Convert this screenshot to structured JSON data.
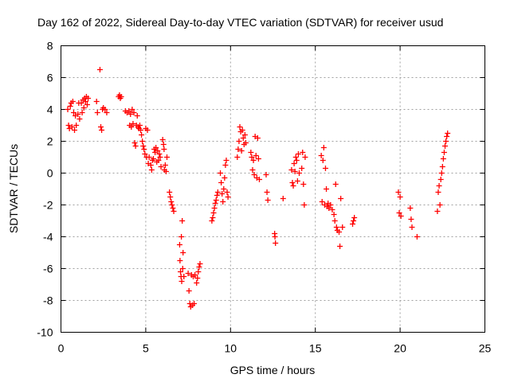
{
  "chart_data": {
    "type": "scatter",
    "title": "Day 162 of 2022, Sidereal Day-to-day VTEC variation (SDTVAR) for receiver usud",
    "xlabel": "GPS time / hours",
    "ylabel": "SDTVAR / TECUs",
    "xlim": [
      0,
      25
    ],
    "ylim": [
      -10,
      8
    ],
    "xticks": [
      0,
      5,
      10,
      15,
      20,
      25
    ],
    "yticks": [
      -10,
      -8,
      -6,
      -4,
      -2,
      0,
      2,
      4,
      6,
      8
    ],
    "grid": true,
    "marker": "+",
    "marker_color": "#ff0000",
    "series": [
      {
        "name": "SDTVAR",
        "points": [
          [
            0.4,
            4.0
          ],
          [
            0.45,
            3.0
          ],
          [
            0.5,
            2.8
          ],
          [
            0.55,
            4.2
          ],
          [
            0.6,
            4.4
          ],
          [
            0.65,
            2.9
          ],
          [
            0.7,
            4.5
          ],
          [
            0.75,
            3.8
          ],
          [
            0.8,
            2.7
          ],
          [
            0.85,
            3.6
          ],
          [
            0.9,
            3.0
          ],
          [
            1.0,
            3.7
          ],
          [
            1.05,
            4.4
          ],
          [
            1.1,
            3.4
          ],
          [
            1.2,
            4.4
          ],
          [
            1.25,
            3.8
          ],
          [
            1.3,
            4.6
          ],
          [
            1.35,
            4.1
          ],
          [
            1.4,
            4.7
          ],
          [
            1.45,
            4.5
          ],
          [
            1.5,
            4.8
          ],
          [
            1.55,
            4.3
          ],
          [
            1.6,
            4.7
          ],
          [
            2.1,
            4.5
          ],
          [
            2.15,
            3.8
          ],
          [
            2.3,
            6.5
          ],
          [
            2.35,
            2.9
          ],
          [
            2.4,
            2.7
          ],
          [
            2.45,
            4.0
          ],
          [
            2.5,
            4.1
          ],
          [
            2.6,
            4.0
          ],
          [
            2.7,
            3.8
          ],
          [
            3.4,
            4.8
          ],
          [
            3.45,
            4.9
          ],
          [
            3.5,
            4.7
          ],
          [
            3.55,
            4.8
          ],
          [
            3.8,
            3.9
          ],
          [
            3.9,
            3.8
          ],
          [
            4.0,
            3.9
          ],
          [
            4.05,
            3.0
          ],
          [
            4.1,
            3.7
          ],
          [
            4.15,
            2.9
          ],
          [
            4.2,
            4.0
          ],
          [
            4.25,
            3.1
          ],
          [
            4.3,
            3.8
          ],
          [
            4.35,
            1.9
          ],
          [
            4.4,
            1.7
          ],
          [
            4.45,
            3.0
          ],
          [
            4.5,
            3.6
          ],
          [
            4.55,
            2.9
          ],
          [
            4.6,
            2.8
          ],
          [
            4.65,
            3.0
          ],
          [
            4.7,
            2.7
          ],
          [
            4.75,
            2.4
          ],
          [
            4.8,
            2.0
          ],
          [
            4.85,
            1.7
          ],
          [
            4.9,
            1.5
          ],
          [
            4.95,
            1.2
          ],
          [
            5.0,
            2.8
          ],
          [
            5.05,
            1.0
          ],
          [
            5.1,
            2.7
          ],
          [
            5.15,
            0.6
          ],
          [
            5.2,
            1.0
          ],
          [
            5.3,
            0.5
          ],
          [
            5.35,
            0.2
          ],
          [
            5.4,
            0.8
          ],
          [
            5.45,
            0.9
          ],
          [
            5.5,
            1.5
          ],
          [
            5.55,
            1.3
          ],
          [
            5.6,
            1.6
          ],
          [
            5.65,
            0.7
          ],
          [
            5.7,
            1.4
          ],
          [
            5.75,
            0.8
          ],
          [
            5.8,
            1.2
          ],
          [
            5.85,
            1.0
          ],
          [
            5.9,
            0.4
          ],
          [
            6.0,
            2.1
          ],
          [
            6.05,
            1.8
          ],
          [
            6.08,
            1.5
          ],
          [
            6.1,
            0.2
          ],
          [
            6.15,
            0.5
          ],
          [
            6.2,
            0.1
          ],
          [
            6.25,
            1.0
          ],
          [
            6.4,
            -1.2
          ],
          [
            6.45,
            -1.5
          ],
          [
            6.5,
            -1.8
          ],
          [
            6.55,
            -2.0
          ],
          [
            6.6,
            -2.2
          ],
          [
            6.65,
            -2.4
          ],
          [
            7.0,
            -4.5
          ],
          [
            7.02,
            -5.5
          ],
          [
            7.05,
            -6.2
          ],
          [
            7.08,
            -6.5
          ],
          [
            7.1,
            -4.0
          ],
          [
            7.12,
            -6.8
          ],
          [
            7.15,
            -3.0
          ],
          [
            7.18,
            -6.0
          ],
          [
            7.2,
            -5.0
          ],
          [
            7.25,
            -6.5
          ],
          [
            7.5,
            -6.3
          ],
          [
            7.55,
            -7.4
          ],
          [
            7.6,
            -8.2
          ],
          [
            7.65,
            -8.4
          ],
          [
            7.7,
            -6.4
          ],
          [
            7.75,
            -8.3
          ],
          [
            7.8,
            -6.5
          ],
          [
            7.85,
            -8.2
          ],
          [
            7.9,
            -6.4
          ],
          [
            8.0,
            -6.9
          ],
          [
            8.05,
            -6.6
          ],
          [
            8.1,
            -6.2
          ],
          [
            8.15,
            -5.9
          ],
          [
            8.2,
            -5.7
          ],
          [
            8.9,
            -3.0
          ],
          [
            8.95,
            -2.8
          ],
          [
            9.0,
            -2.5
          ],
          [
            9.05,
            -2.2
          ],
          [
            9.1,
            -1.9
          ],
          [
            9.15,
            -1.7
          ],
          [
            9.2,
            -1.4
          ],
          [
            9.25,
            -1.2
          ],
          [
            9.4,
            0.0
          ],
          [
            9.45,
            -0.6
          ],
          [
            9.5,
            -1.3
          ],
          [
            9.55,
            -1.8
          ],
          [
            9.6,
            -1.0
          ],
          [
            9.65,
            -0.3
          ],
          [
            9.7,
            0.5
          ],
          [
            9.75,
            0.8
          ],
          [
            9.8,
            -1.2
          ],
          [
            9.85,
            -1.5
          ],
          [
            10.4,
            1.0
          ],
          [
            10.45,
            1.5
          ],
          [
            10.5,
            2.0
          ],
          [
            10.55,
            2.9
          ],
          [
            10.6,
            2.6
          ],
          [
            10.65,
            1.4
          ],
          [
            10.7,
            2.7
          ],
          [
            10.75,
            2.2
          ],
          [
            10.8,
            1.8
          ],
          [
            10.85,
            2.4
          ],
          [
            10.9,
            1.9
          ],
          [
            11.2,
            1.3
          ],
          [
            11.25,
            1.0
          ],
          [
            11.3,
            0.2
          ],
          [
            11.35,
            0.8
          ],
          [
            11.4,
            -0.1
          ],
          [
            11.45,
            2.3
          ],
          [
            11.5,
            1.1
          ],
          [
            11.55,
            -0.3
          ],
          [
            11.6,
            2.2
          ],
          [
            11.65,
            0.9
          ],
          [
            11.7,
            -0.4
          ],
          [
            12.1,
            -0.1
          ],
          [
            12.15,
            -1.2
          ],
          [
            12.2,
            -1.7
          ],
          [
            12.6,
            -3.8
          ],
          [
            12.62,
            -4.0
          ],
          [
            12.65,
            -4.4
          ],
          [
            13.1,
            -1.6
          ],
          [
            13.6,
            0.2
          ],
          [
            13.65,
            -0.6
          ],
          [
            13.7,
            -0.8
          ],
          [
            13.75,
            0.6
          ],
          [
            13.8,
            0.1
          ],
          [
            13.85,
            1.0
          ],
          [
            13.9,
            0.8
          ],
          [
            13.95,
            -0.5
          ],
          [
            14.0,
            1.2
          ],
          [
            14.05,
            0.0
          ],
          [
            14.2,
            0.3
          ],
          [
            14.25,
            1.3
          ],
          [
            14.3,
            -0.7
          ],
          [
            14.35,
            -2.0
          ],
          [
            14.4,
            1.0
          ],
          [
            15.35,
            1.1
          ],
          [
            15.4,
            -1.8
          ],
          [
            15.45,
            0.8
          ],
          [
            15.5,
            1.6
          ],
          [
            15.55,
            -2.0
          ],
          [
            15.6,
            0.3
          ],
          [
            15.65,
            -1.0
          ],
          [
            15.7,
            -2.1
          ],
          [
            15.75,
            -1.9
          ],
          [
            15.8,
            -2.2
          ],
          [
            15.9,
            -2.0
          ],
          [
            16.0,
            -2.3
          ],
          [
            16.1,
            -2.6
          ],
          [
            16.15,
            -3.0
          ],
          [
            16.2,
            -0.7
          ],
          [
            16.25,
            -3.4
          ],
          [
            16.3,
            -3.6
          ],
          [
            16.4,
            -3.7
          ],
          [
            16.45,
            -4.6
          ],
          [
            16.5,
            -1.6
          ],
          [
            16.6,
            -3.4
          ],
          [
            17.2,
            -3.2
          ],
          [
            17.25,
            -3.0
          ],
          [
            17.3,
            -2.8
          ],
          [
            19.9,
            -1.2
          ],
          [
            19.95,
            -2.5
          ],
          [
            20.0,
            -1.5
          ],
          [
            20.05,
            -2.7
          ],
          [
            20.6,
            -2.2
          ],
          [
            20.65,
            -2.9
          ],
          [
            20.7,
            -3.4
          ],
          [
            21.0,
            -4.0
          ],
          [
            22.2,
            -2.4
          ],
          [
            22.25,
            -1.2
          ],
          [
            22.3,
            -0.8
          ],
          [
            22.35,
            -2.0
          ],
          [
            22.4,
            -0.4
          ],
          [
            22.45,
            0.0
          ],
          [
            22.5,
            0.4
          ],
          [
            22.55,
            0.9
          ],
          [
            22.6,
            1.3
          ],
          [
            22.65,
            1.7
          ],
          [
            22.7,
            2.0
          ],
          [
            22.75,
            2.3
          ],
          [
            22.8,
            2.5
          ]
        ]
      }
    ]
  }
}
